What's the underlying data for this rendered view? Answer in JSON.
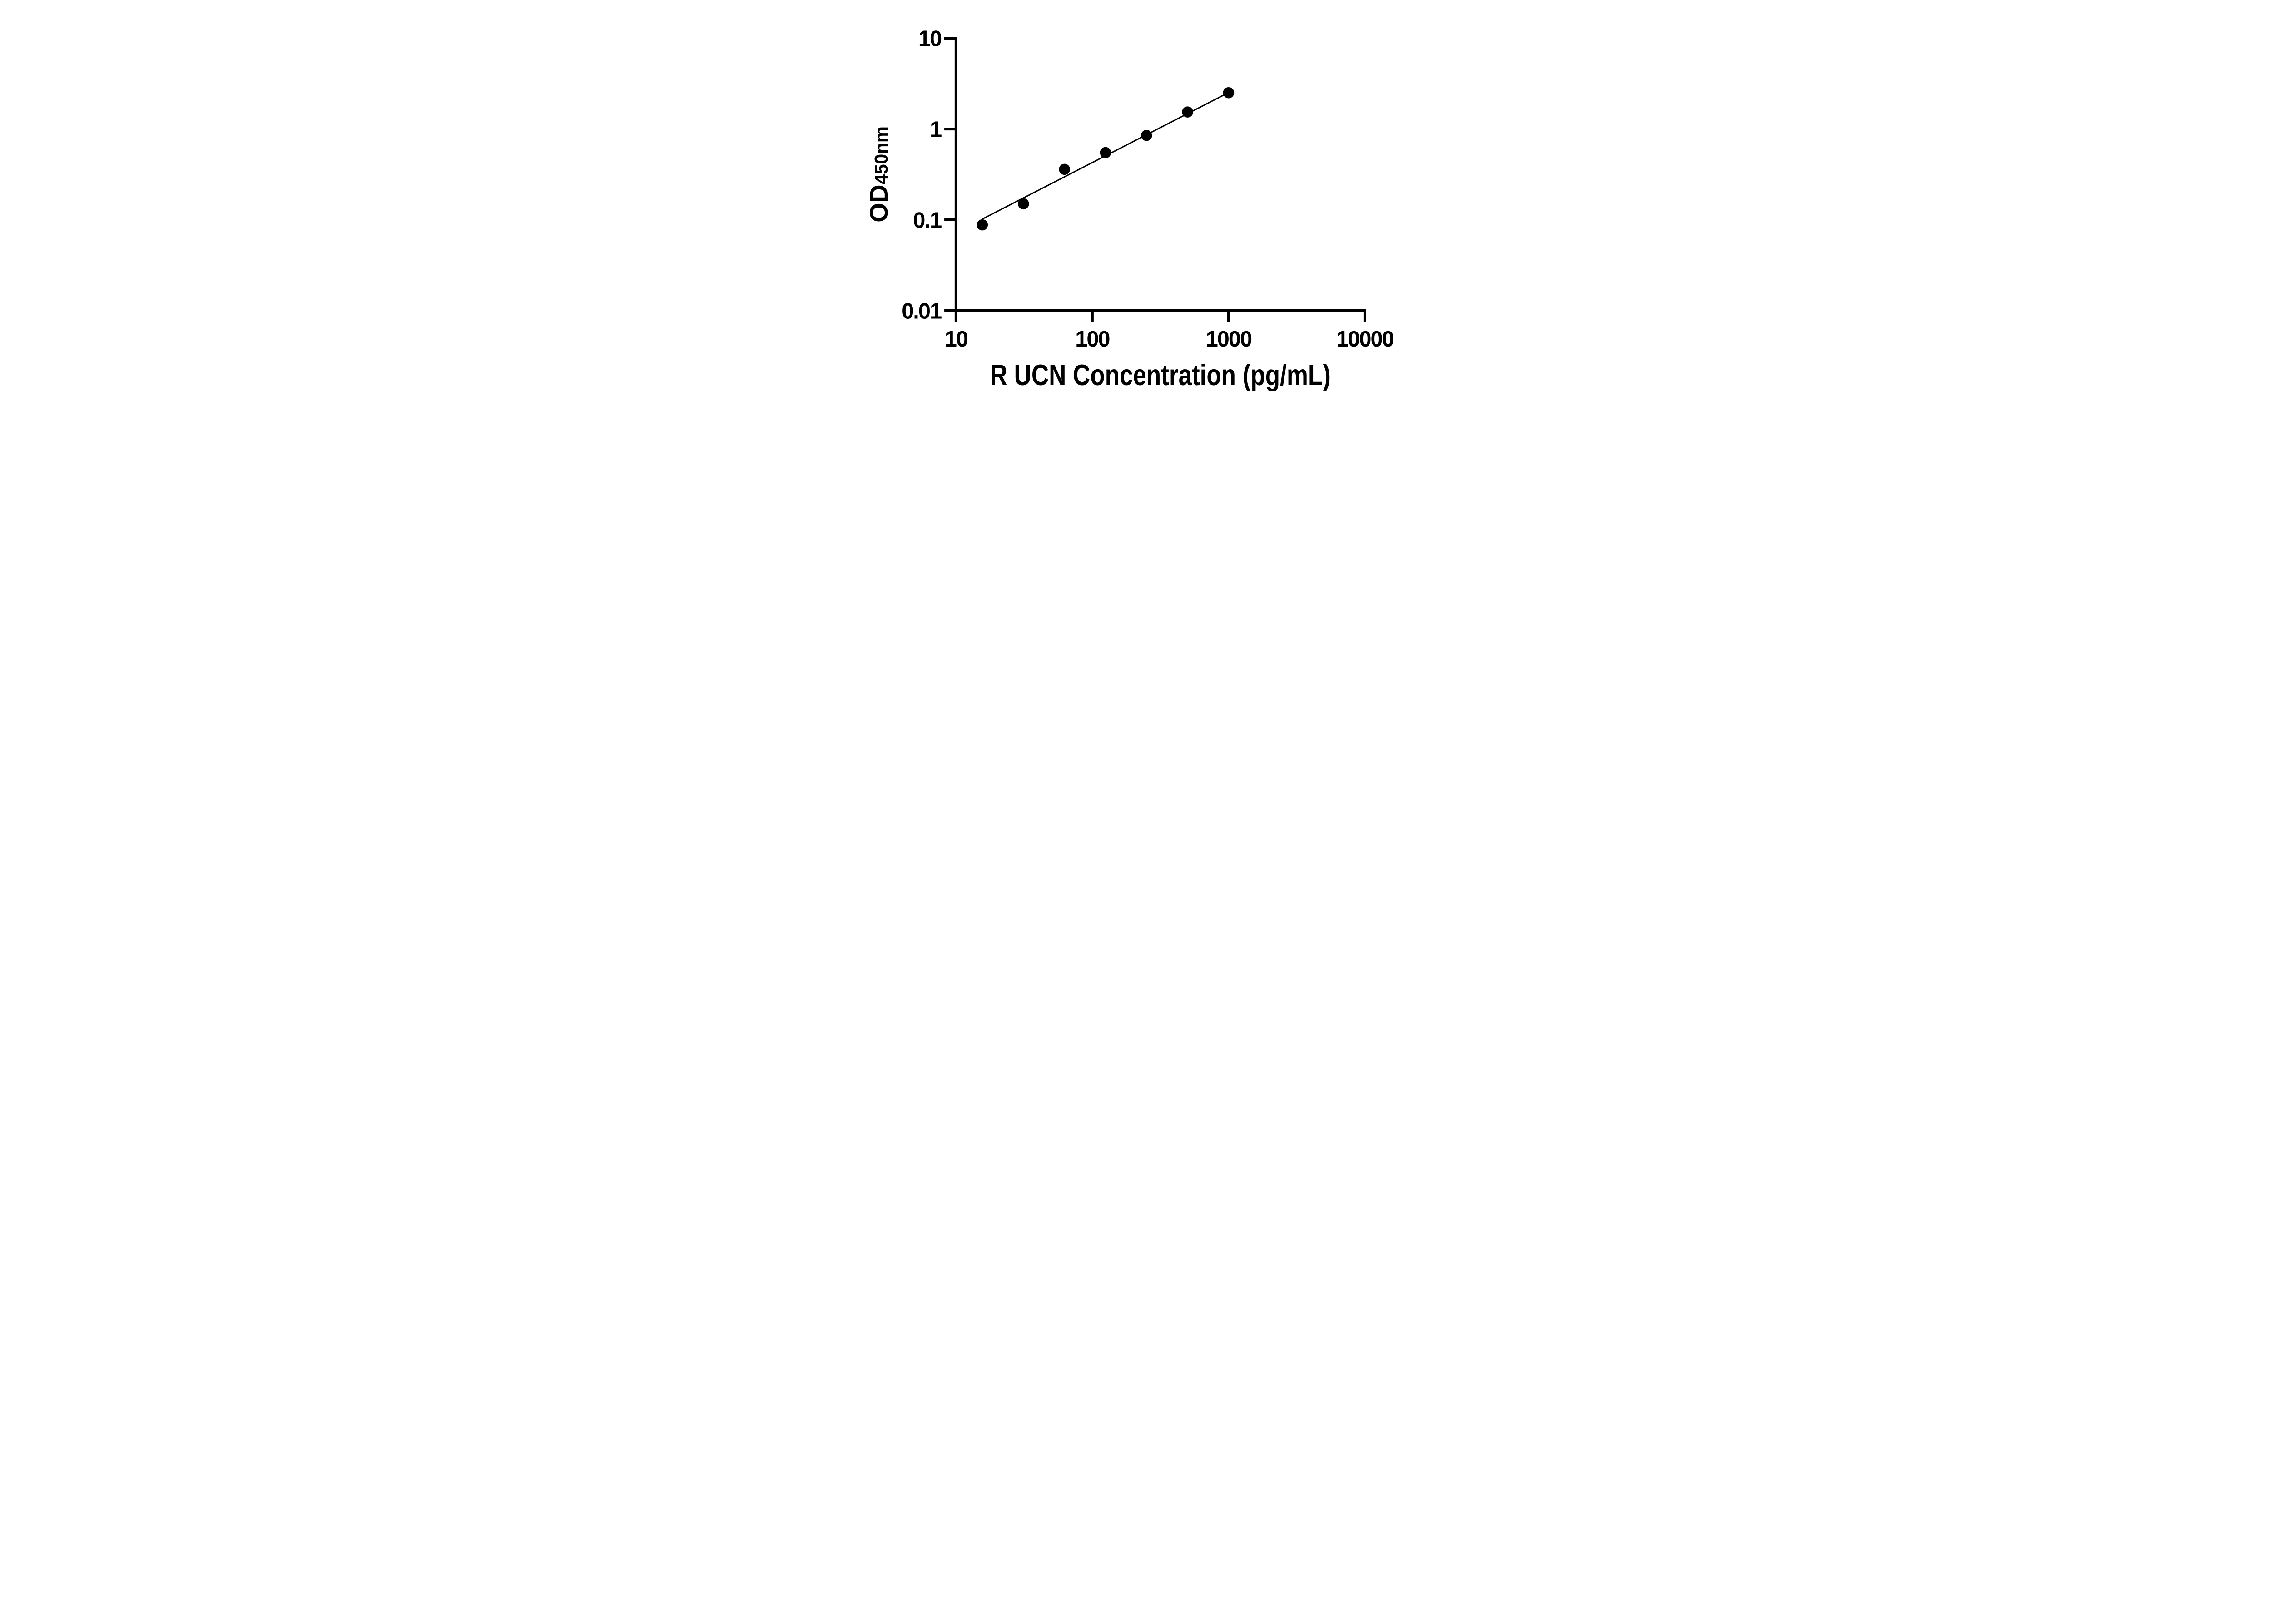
{
  "figure": {
    "background_color": "#ffffff",
    "foreground_color": "#000000"
  },
  "chart_data": {
    "type": "scatter",
    "title": "",
    "xlabel": "R UCN Concentration (pg/mL)",
    "ylabel": "OD450nm",
    "ylabel_parts": {
      "main": "OD",
      "subscript": "450nm"
    },
    "x_scale": "log10",
    "y_scale": "log10",
    "xlim": [
      10,
      10000
    ],
    "ylim": [
      0.01,
      10
    ],
    "grid": false,
    "legend_position": "none",
    "x_ticks": {
      "values": [
        10,
        100,
        1000,
        10000
      ],
      "labels": [
        "10",
        "100",
        "1000",
        "10000"
      ]
    },
    "y_ticks": {
      "values": [
        10,
        1,
        0.1,
        0.01
      ],
      "labels": [
        "10",
        "1",
        "0.1",
        "0.01"
      ]
    },
    "series": [
      {
        "name": "standard curve data points",
        "type": "scatter",
        "marker": "filled-circle",
        "color": "#000000",
        "x": [
          15.6,
          31.25,
          62.5,
          125,
          250,
          500,
          1000
        ],
        "y": [
          0.088,
          0.15,
          0.36,
          0.55,
          0.85,
          1.54,
          2.51
        ]
      },
      {
        "name": "fitted trend line",
        "type": "line",
        "color": "#000000",
        "x": [
          15.6,
          1000
        ],
        "y": [
          0.102,
          2.52
        ]
      }
    ]
  }
}
